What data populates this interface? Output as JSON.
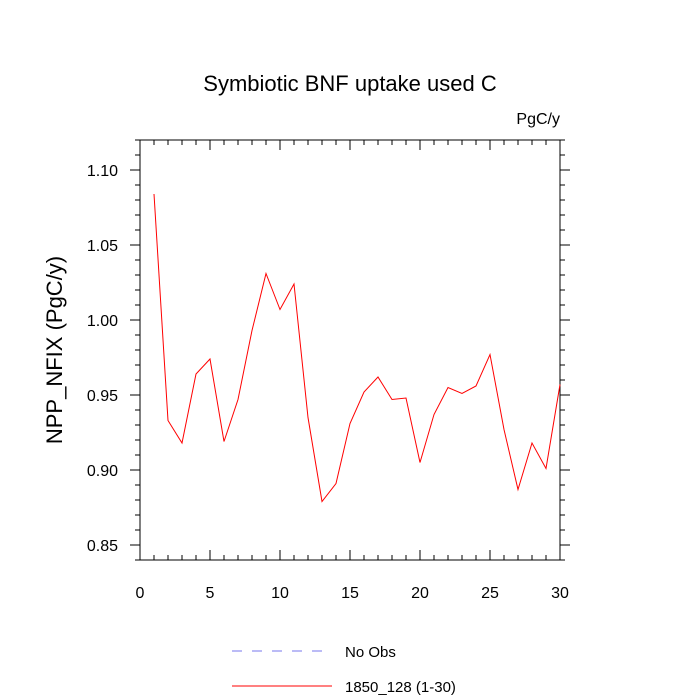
{
  "chart_data": {
    "type": "line",
    "title": "Symbiotic BNF uptake used C",
    "units": "PgC/y",
    "xlabel": "",
    "ylabel": "NPP_NFIX  (PgC/y)",
    "xlim": [
      0,
      30
    ],
    "ylim": [
      0.84,
      1.12
    ],
    "x_ticks": [
      0,
      5,
      10,
      15,
      20,
      25,
      30
    ],
    "x_tick_labels": [
      "0",
      "5",
      "10",
      "15",
      "20",
      "25",
      "30"
    ],
    "y_ticks": [
      0.85,
      0.9,
      0.95,
      1.0,
      1.05,
      1.1
    ],
    "y_tick_labels": [
      "0.85",
      "0.90",
      "0.95",
      "1.00",
      "1.05",
      "1.10"
    ],
    "grid": false,
    "legend_position": "bottom-center",
    "series": [
      {
        "name": "1850_128 (1-30)",
        "color": "#ff0000",
        "style": "solid",
        "x": [
          1,
          2,
          3,
          4,
          5,
          6,
          7,
          8,
          9,
          10,
          11,
          12,
          13,
          14,
          15,
          16,
          17,
          18,
          19,
          20,
          21,
          22,
          23,
          24,
          25,
          26,
          27,
          28,
          29,
          30
        ],
        "values": [
          1.084,
          0.933,
          0.918,
          0.964,
          0.974,
          0.919,
          0.947,
          0.993,
          1.031,
          1.007,
          1.024,
          0.935,
          0.879,
          0.891,
          0.931,
          0.952,
          0.962,
          0.947,
          0.948,
          0.905,
          0.937,
          0.955,
          0.951,
          0.956,
          0.977,
          0.927,
          0.887,
          0.918,
          0.901,
          0.957
        ]
      }
    ],
    "legend": [
      {
        "label": "No Obs",
        "color": "#7777ee",
        "style": "dashed"
      },
      {
        "label": "1850_128 (1-30)",
        "color": "#ff0000",
        "style": "solid"
      }
    ]
  }
}
